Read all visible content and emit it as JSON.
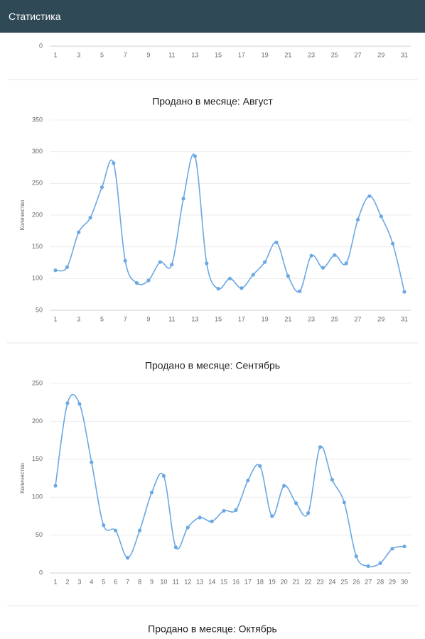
{
  "header": {
    "title": "Статистика"
  },
  "chart_data": [
    {
      "type": "line",
      "xlim": [
        1,
        31
      ],
      "xticks": [
        1,
        3,
        5,
        7,
        9,
        11,
        13,
        15,
        17,
        19,
        21,
        23,
        25,
        27,
        29,
        31
      ],
      "yticks": [
        0
      ],
      "grid": true
    },
    {
      "type": "line",
      "title": "Продано в месяце: Август",
      "y_label": "Количество",
      "color": "#6aa8e4",
      "x": [
        1,
        2,
        3,
        4,
        5,
        6,
        7,
        8,
        9,
        10,
        11,
        12,
        13,
        14,
        15,
        16,
        17,
        18,
        19,
        20,
        21,
        22,
        23,
        24,
        25,
        26,
        27,
        28,
        29,
        30,
        31
      ],
      "values": [
        113,
        118,
        173,
        196,
        244,
        282,
        128,
        93,
        97,
        126,
        122,
        226,
        293,
        124,
        84,
        100,
        85,
        106,
        126,
        157,
        104,
        80,
        136,
        117,
        137,
        124,
        193,
        230,
        198,
        155,
        79
      ],
      "xlim": [
        1,
        31
      ],
      "xticks": [
        1,
        3,
        5,
        7,
        9,
        11,
        13,
        15,
        17,
        19,
        21,
        23,
        25,
        27,
        29,
        31
      ],
      "ylim": [
        50,
        350
      ],
      "yticks": [
        50,
        100,
        150,
        200,
        250,
        300,
        350
      ],
      "grid": true
    },
    {
      "type": "line",
      "title": "Продано в месяце: Сентябрь",
      "y_label": "Количество",
      "color": "#6aa8e4",
      "x": [
        1,
        2,
        3,
        4,
        5,
        6,
        7,
        8,
        9,
        10,
        11,
        12,
        13,
        14,
        15,
        16,
        17,
        18,
        19,
        20,
        21,
        22,
        23,
        24,
        25,
        26,
        27,
        28,
        29,
        30
      ],
      "values": [
        115,
        224,
        223,
        146,
        63,
        56,
        20,
        56,
        106,
        128,
        34,
        60,
        73,
        68,
        82,
        83,
        122,
        141,
        75,
        115,
        92,
        79,
        166,
        123,
        93,
        22,
        9,
        13,
        32,
        35
      ],
      "xlim": [
        1,
        30
      ],
      "xticks": [
        1,
        2,
        3,
        4,
        5,
        6,
        7,
        8,
        9,
        10,
        11,
        12,
        13,
        14,
        15,
        16,
        17,
        18,
        19,
        20,
        21,
        22,
        23,
        24,
        25,
        26,
        27,
        28,
        29,
        30
      ],
      "ylim": [
        0,
        250
      ],
      "yticks": [
        0,
        50,
        100,
        150,
        200,
        250
      ],
      "grid": true
    },
    {
      "type": "line",
      "title": "Продано в месяце: Октябрь"
    }
  ]
}
